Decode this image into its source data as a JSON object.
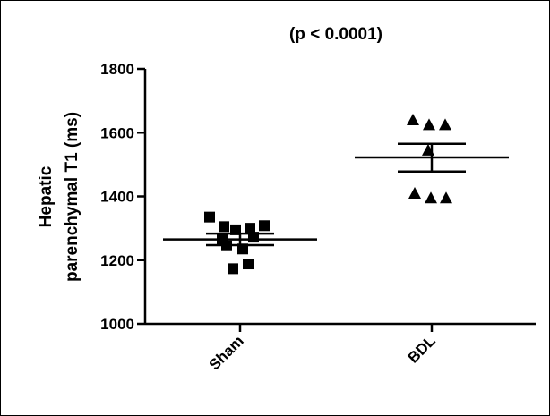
{
  "chart_data": {
    "type": "scatter",
    "title": "(p < 0.0001)",
    "xlabel": "",
    "ylabel_lines": [
      "Hepatic",
      "parenchymal T1 (ms)"
    ],
    "categories": [
      "Sham",
      "BDL"
    ],
    "ylim": [
      1000,
      1800
    ],
    "yticks": [
      1000,
      1200,
      1400,
      1600,
      1800
    ],
    "grid": false,
    "series": [
      {
        "category": "Sham",
        "marker": "square",
        "points": [
          1335,
          1305,
          1295,
          1300,
          1308,
          1272,
          1245,
          1235,
          1265,
          1188,
          1173
        ],
        "mean": 1265,
        "sem_upper": 1283,
        "sem_lower": 1247
      },
      {
        "category": "BDL",
        "marker": "triangle",
        "points": [
          1640,
          1625,
          1625,
          1545,
          1410,
          1395,
          1395
        ],
        "mean": 1522,
        "sem_upper": 1565,
        "sem_lower": 1478
      }
    ],
    "marker_color": "#000000"
  }
}
